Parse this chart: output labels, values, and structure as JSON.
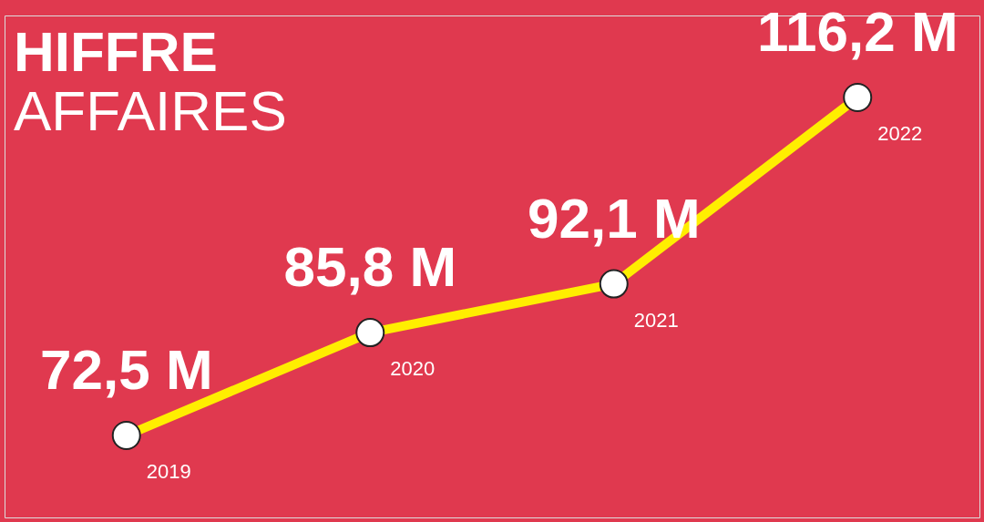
{
  "chart_data": {
    "type": "line",
    "title": "HIFFRE",
    "subtitle": "AFFAIRES",
    "categories": [
      "2019",
      "2020",
      "2021",
      "2022"
    ],
    "series": [
      {
        "color": "#ffee00",
        "values": [
          72.5,
          85.8,
          92.1,
          116.2
        ],
        "value_labels": [
          "72,5 M",
          "85,8 M",
          "92,1 M",
          "116,2 M"
        ]
      }
    ],
    "marker": "circle"
  }
}
